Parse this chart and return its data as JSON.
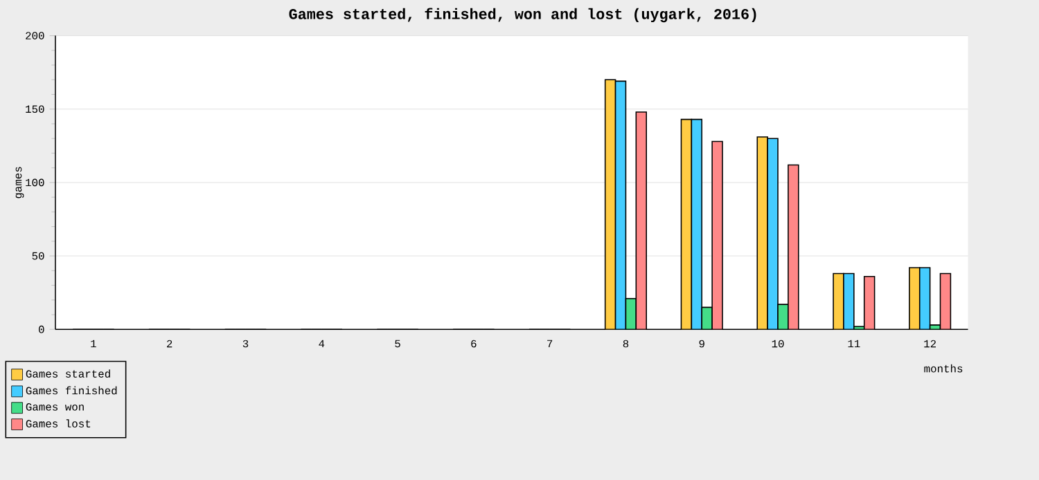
{
  "chart_data": {
    "type": "bar",
    "title": "Games started, finished, won and lost (uygark, 2016)",
    "xlabel": "months",
    "ylabel": "games",
    "categories": [
      "1",
      "2",
      "3",
      "4",
      "5",
      "6",
      "7",
      "8",
      "9",
      "10",
      "11",
      "12"
    ],
    "series": [
      {
        "name": "Games started",
        "color": "#ffcc44",
        "values": [
          0,
          0,
          0,
          0,
          0,
          0,
          0,
          170,
          143,
          131,
          38,
          42
        ]
      },
      {
        "name": "Games finished",
        "color": "#44ccff",
        "values": [
          0,
          0,
          0,
          0,
          0,
          0,
          0,
          169,
          143,
          130,
          38,
          42
        ]
      },
      {
        "name": "Games won",
        "color": "#44dd88",
        "values": [
          0,
          0,
          0,
          0,
          0,
          0,
          0,
          21,
          15,
          17,
          2,
          3
        ]
      },
      {
        "name": "Games lost",
        "color": "#ff8888",
        "values": [
          0,
          0,
          0,
          0,
          0,
          0,
          0,
          148,
          128,
          112,
          36,
          38
        ]
      }
    ],
    "ylim": [
      0,
      200
    ],
    "yticks": [
      0,
      50,
      100,
      150,
      200
    ],
    "grid": "y",
    "legend": "bottom left"
  }
}
